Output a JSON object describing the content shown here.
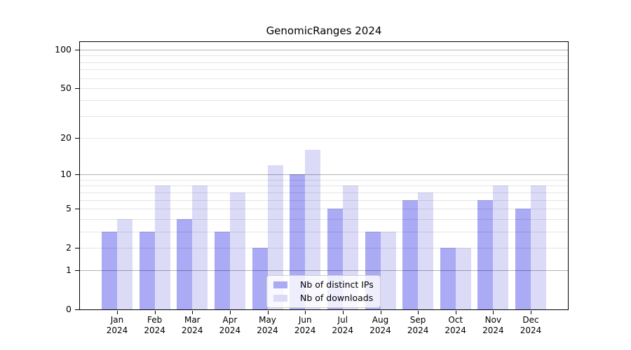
{
  "chart_data": {
    "type": "bar",
    "title": "GenomicRanges 2024",
    "categories": [
      "Jan",
      "Feb",
      "Mar",
      "Apr",
      "May",
      "Jun",
      "Jul",
      "Aug",
      "Sep",
      "Oct",
      "Nov",
      "Dec"
    ],
    "x_year": "2024",
    "series": [
      {
        "name": "Nb of distinct IPs",
        "color": "#aaaaf5",
        "values": [
          3,
          3,
          4,
          3,
          2,
          10,
          5,
          3,
          6,
          2,
          6,
          5
        ]
      },
      {
        "name": "Nb of downloads",
        "color": "#dbdbf8",
        "values": [
          4,
          8,
          8,
          7,
          12,
          16,
          8,
          3,
          7,
          2,
          8,
          8
        ]
      }
    ],
    "xlabel": "",
    "ylabel": "",
    "y_axis": {
      "scale": "log1p",
      "tick_values": [
        0,
        1,
        2,
        5,
        10,
        20,
        50,
        100
      ],
      "major_gridlines": [
        1,
        10,
        100
      ],
      "minor_gridlines": [
        2,
        3,
        4,
        5,
        6,
        7,
        8,
        9,
        20,
        30,
        40,
        50,
        60,
        70,
        80,
        90
      ],
      "range": [
        0,
        118
      ]
    },
    "grid": "y-only, drawn over bars",
    "legend": {
      "position": "lower center",
      "entries": [
        "Nb of distinct IPs",
        "Nb of downloads"
      ]
    }
  }
}
